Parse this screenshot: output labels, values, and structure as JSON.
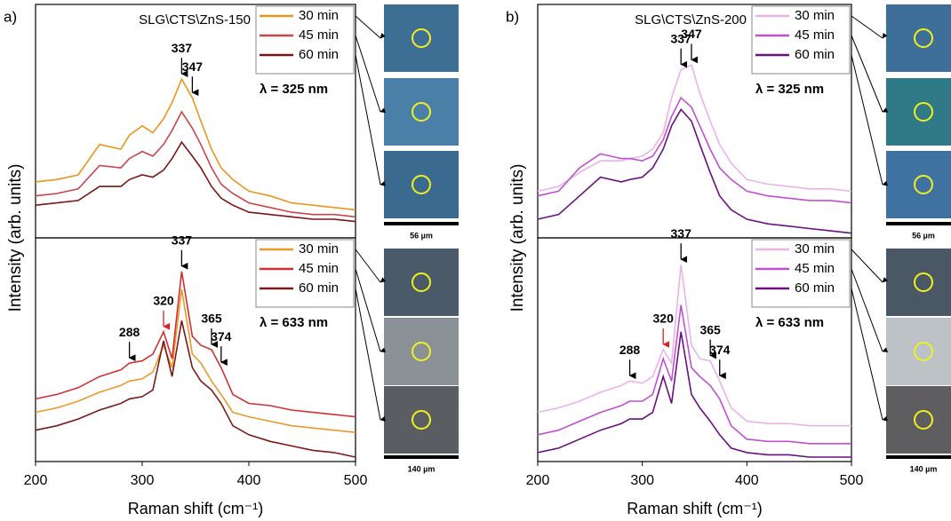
{
  "figure": {
    "panels": [
      {
        "label": "a)",
        "ylabel": "Intensity (arb. units)",
        "scale_bars": [
          "56 µm",
          "140 µm"
        ]
      },
      {
        "label": "b)",
        "ylabel": "Intensity (arb. units)",
        "scale_bars": [
          "56 µm",
          "140 µm"
        ]
      }
    ]
  },
  "chart_data": [
    {
      "type": "line",
      "sample": "SLG\\CTS\\ZnS-150",
      "wavelength": "λ = 325 nm",
      "x": [
        200,
        220,
        240,
        260,
        280,
        288,
        300,
        310,
        320,
        328,
        337,
        347,
        355,
        365,
        374,
        385,
        400,
        420,
        440,
        460,
        480,
        500
      ],
      "xlim": [
        200,
        500
      ],
      "ylim": [
        0,
        1
      ],
      "series": [
        {
          "name": "30 min",
          "color": "#e8961e",
          "values": [
            0.24,
            0.25,
            0.27,
            0.4,
            0.38,
            0.44,
            0.48,
            0.45,
            0.51,
            0.58,
            0.68,
            0.6,
            0.5,
            0.38,
            0.3,
            0.25,
            0.2,
            0.18,
            0.15,
            0.14,
            0.13,
            0.12
          ]
        },
        {
          "name": "45 min",
          "color": "#c8464a",
          "values": [
            0.18,
            0.19,
            0.21,
            0.31,
            0.3,
            0.34,
            0.37,
            0.35,
            0.4,
            0.46,
            0.54,
            0.47,
            0.4,
            0.3,
            0.23,
            0.19,
            0.15,
            0.13,
            0.11,
            0.1,
            0.1,
            0.09
          ]
        },
        {
          "name": "60 min",
          "color": "#7a1515",
          "values": [
            0.14,
            0.15,
            0.16,
            0.22,
            0.22,
            0.25,
            0.27,
            0.26,
            0.29,
            0.34,
            0.41,
            0.35,
            0.3,
            0.22,
            0.17,
            0.14,
            0.11,
            0.1,
            0.09,
            0.08,
            0.08,
            0.07
          ]
        }
      ],
      "annotations": [
        {
          "x": 337
        },
        {
          "x": 347
        }
      ]
    },
    {
      "type": "line",
      "wavelength": "λ = 633 nm",
      "xlabel": "Raman shift (cm⁻¹)",
      "x": [
        200,
        220,
        240,
        260,
        280,
        288,
        300,
        310,
        320,
        328,
        337,
        347,
        355,
        365,
        374,
        385,
        400,
        420,
        440,
        460,
        480,
        500
      ],
      "xlim": [
        200,
        500
      ],
      "ylim": [
        0,
        1
      ],
      "xticks": [
        200,
        300,
        400,
        500
      ],
      "series": [
        {
          "name": "30 min",
          "color": "#e89a2a",
          "values": [
            0.22,
            0.24,
            0.27,
            0.31,
            0.34,
            0.36,
            0.37,
            0.4,
            0.52,
            0.42,
            0.77,
            0.48,
            0.44,
            0.36,
            0.3,
            0.22,
            0.2,
            0.18,
            0.16,
            0.15,
            0.14,
            0.13
          ]
        },
        {
          "name": "45 min",
          "color": "#d03030",
          "values": [
            0.28,
            0.3,
            0.33,
            0.38,
            0.41,
            0.44,
            0.45,
            0.48,
            0.58,
            0.46,
            0.85,
            0.56,
            0.52,
            0.5,
            0.42,
            0.3,
            0.26,
            0.25,
            0.23,
            0.22,
            0.21,
            0.2
          ]
        },
        {
          "name": "60 min",
          "color": "#7a1a1a",
          "values": [
            0.14,
            0.16,
            0.19,
            0.23,
            0.26,
            0.28,
            0.29,
            0.32,
            0.54,
            0.38,
            0.63,
            0.42,
            0.36,
            0.32,
            0.26,
            0.16,
            0.12,
            0.09,
            0.07,
            0.05,
            0.04,
            0.02
          ]
        }
      ],
      "annotations": [
        {
          "x": 288
        },
        {
          "x": 320,
          "color": "#e02020"
        },
        {
          "x": 337
        },
        {
          "x": 365
        },
        {
          "x": 374
        }
      ]
    },
    {
      "type": "line",
      "sample": "SLG\\CTS\\ZnS-200",
      "wavelength": "λ = 325 nm",
      "x": [
        200,
        220,
        240,
        260,
        280,
        288,
        300,
        310,
        320,
        328,
        337,
        347,
        355,
        365,
        374,
        385,
        400,
        420,
        440,
        460,
        480,
        500
      ],
      "xlim": [
        200,
        500
      ],
      "ylim": [
        0,
        1
      ],
      "series": [
        {
          "name": "30 min",
          "color": "#e8b4e8",
          "values": [
            0.2,
            0.22,
            0.28,
            0.33,
            0.33,
            0.34,
            0.35,
            0.38,
            0.45,
            0.6,
            0.72,
            0.74,
            0.62,
            0.5,
            0.4,
            0.32,
            0.25,
            0.23,
            0.22,
            0.21,
            0.21,
            0.2
          ]
        },
        {
          "name": "45 min",
          "color": "#c050d0",
          "values": [
            0.18,
            0.2,
            0.3,
            0.36,
            0.34,
            0.34,
            0.33,
            0.35,
            0.42,
            0.52,
            0.6,
            0.56,
            0.48,
            0.38,
            0.3,
            0.25,
            0.2,
            0.18,
            0.17,
            0.16,
            0.16,
            0.15
          ]
        },
        {
          "name": "60 min",
          "color": "#6a1080",
          "values": [
            0.08,
            0.1,
            0.18,
            0.26,
            0.24,
            0.25,
            0.26,
            0.3,
            0.38,
            0.48,
            0.55,
            0.5,
            0.4,
            0.28,
            0.18,
            0.12,
            0.08,
            0.06,
            0.05,
            0.04,
            0.03,
            0.02
          ]
        }
      ],
      "annotations": [
        {
          "x": 337
        },
        {
          "x": 347
        }
      ]
    },
    {
      "type": "line",
      "wavelength": "λ = 633 nm",
      "xlabel": "Raman shift (cm⁻¹)",
      "x": [
        200,
        220,
        240,
        260,
        280,
        288,
        300,
        310,
        320,
        328,
        337,
        347,
        355,
        365,
        374,
        385,
        400,
        420,
        440,
        460,
        480,
        500
      ],
      "xlim": [
        200,
        500
      ],
      "ylim": [
        0,
        1
      ],
      "xticks": [
        200,
        300,
        400,
        500
      ],
      "series": [
        {
          "name": "30 min",
          "color": "#e8b4e8",
          "values": [
            0.22,
            0.24,
            0.27,
            0.31,
            0.34,
            0.36,
            0.35,
            0.38,
            0.5,
            0.44,
            0.88,
            0.52,
            0.46,
            0.45,
            0.36,
            0.24,
            0.18,
            0.17,
            0.17,
            0.16,
            0.16,
            0.16
          ]
        },
        {
          "name": "45 min",
          "color": "#c050d0",
          "values": [
            0.12,
            0.14,
            0.18,
            0.22,
            0.25,
            0.27,
            0.27,
            0.3,
            0.46,
            0.36,
            0.7,
            0.42,
            0.38,
            0.34,
            0.28,
            0.16,
            0.1,
            0.09,
            0.09,
            0.08,
            0.08,
            0.08
          ]
        },
        {
          "name": "60 min",
          "color": "#6a1080",
          "values": [
            0.04,
            0.06,
            0.1,
            0.14,
            0.17,
            0.19,
            0.19,
            0.22,
            0.38,
            0.26,
            0.58,
            0.3,
            0.24,
            0.18,
            0.12,
            0.06,
            0.04,
            0.03,
            0.03,
            0.02,
            0.02,
            0.02
          ]
        }
      ],
      "annotations": [
        {
          "x": 288
        },
        {
          "x": 320,
          "color": "#e02020"
        },
        {
          "x": 337
        },
        {
          "x": 365
        },
        {
          "x": 374
        }
      ]
    }
  ]
}
